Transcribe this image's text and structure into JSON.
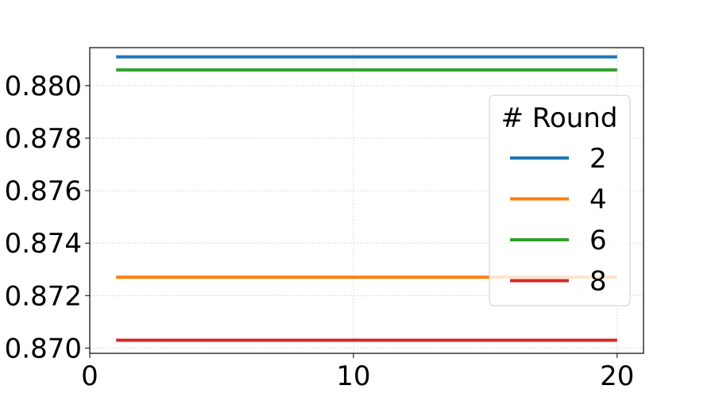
{
  "chart_data": {
    "type": "line",
    "title": "",
    "xlabel": "",
    "ylabel": "",
    "xlim": [
      0,
      21
    ],
    "ylim": [
      0.8698,
      0.88145
    ],
    "x_ticks": [
      0,
      10,
      20
    ],
    "x_tick_labels": [
      "0",
      "10",
      "20"
    ],
    "y_ticks": [
      0.87,
      0.872,
      0.874,
      0.876,
      0.878,
      0.88
    ],
    "y_tick_labels": [
      "0.870",
      "0.872",
      "0.874",
      "0.876",
      "0.878",
      "0.880"
    ],
    "grid": true,
    "legend": {
      "title": "# Round",
      "placement": "right"
    },
    "series": [
      {
        "name": "2",
        "color": "#1f77b4",
        "x": [
          1,
          20
        ],
        "y": [
          0.8811,
          0.8811
        ]
      },
      {
        "name": "4",
        "color": "#ff7f0e",
        "x": [
          1,
          20
        ],
        "y": [
          0.8727,
          0.8727
        ]
      },
      {
        "name": "6",
        "color": "#2ca02c",
        "x": [
          1,
          20
        ],
        "y": [
          0.8806,
          0.8806
        ]
      },
      {
        "name": "8",
        "color": "#d62728",
        "x": [
          1,
          20
        ],
        "y": [
          0.8703,
          0.8703
        ]
      }
    ]
  }
}
